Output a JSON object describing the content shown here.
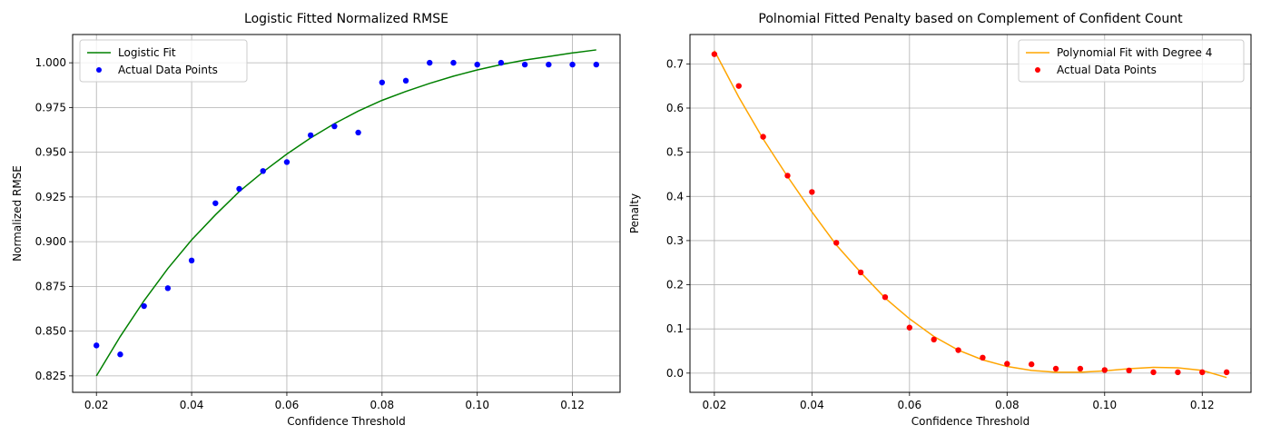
{
  "figure": {
    "background": "#ffffff",
    "grid_color": "#b0b0b0"
  },
  "chart_data": [
    {
      "type": "scatter",
      "title": "Logistic Fitted Normalized RMSE",
      "xlabel": "Confidence Threshold",
      "ylabel": "Normalized RMSE",
      "xlim": [
        0.015,
        0.13
      ],
      "ylim": [
        0.8158,
        1.0158
      ],
      "xticks": [
        0.02,
        0.04,
        0.06,
        0.08,
        0.1,
        0.12
      ],
      "xtick_labels": [
        "0.02",
        "0.04",
        "0.06",
        "0.08",
        "0.10",
        "0.12"
      ],
      "yticks": [
        0.825,
        0.85,
        0.875,
        0.9,
        0.925,
        0.95,
        0.975,
        1.0
      ],
      "ytick_labels": [
        "0.825",
        "0.850",
        "0.875",
        "0.900",
        "0.925",
        "0.950",
        "0.975",
        "1.000"
      ],
      "grid": true,
      "legend_position": "top-left",
      "series": [
        {
          "name": "Logistic Fit",
          "kind": "line",
          "color": "#008000",
          "x": [
            0.02,
            0.025,
            0.03,
            0.035,
            0.04,
            0.045,
            0.05,
            0.055,
            0.06,
            0.065,
            0.07,
            0.075,
            0.08,
            0.085,
            0.09,
            0.095,
            0.1,
            0.105,
            0.11,
            0.115,
            0.12,
            0.125
          ],
          "y": [
            0.825,
            0.847,
            0.867,
            0.885,
            0.901,
            0.915,
            0.928,
            0.939,
            0.949,
            0.958,
            0.966,
            0.973,
            0.979,
            0.984,
            0.9885,
            0.9925,
            0.996,
            0.999,
            1.0015,
            1.0035,
            1.0055,
            1.0072
          ]
        },
        {
          "name": "Actual Data Points",
          "kind": "scatter",
          "color": "#0000ff",
          "x": [
            0.02,
            0.025,
            0.03,
            0.035,
            0.04,
            0.045,
            0.05,
            0.055,
            0.06,
            0.065,
            0.07,
            0.075,
            0.08,
            0.085,
            0.09,
            0.095,
            0.1,
            0.105,
            0.11,
            0.115,
            0.12,
            0.125
          ],
          "y": [
            0.842,
            0.837,
            0.864,
            0.874,
            0.8895,
            0.9215,
            0.9295,
            0.9395,
            0.9445,
            0.9595,
            0.9645,
            0.961,
            0.989,
            0.99,
            1.0,
            1.0,
            0.999,
            1.0,
            0.999,
            0.999,
            0.999,
            0.999
          ]
        }
      ]
    },
    {
      "type": "scatter",
      "title": "Polnomial Fitted Penalty based on Complement of Confident Count",
      "xlabel": "Confidence Threshold",
      "ylabel": "Penalty",
      "xlim": [
        0.015,
        0.13
      ],
      "ylim": [
        -0.0435,
        0.7665
      ],
      "xticks": [
        0.02,
        0.04,
        0.06,
        0.08,
        0.1,
        0.12
      ],
      "xtick_labels": [
        "0.02",
        "0.04",
        "0.06",
        "0.08",
        "0.10",
        "0.12"
      ],
      "yticks": [
        0.0,
        0.1,
        0.2,
        0.3,
        0.4,
        0.5,
        0.6,
        0.7
      ],
      "ytick_labels": [
        "0.0",
        "0.1",
        "0.2",
        "0.3",
        "0.4",
        "0.5",
        "0.6",
        "0.7"
      ],
      "grid": true,
      "legend_position": "top-right",
      "series": [
        {
          "name": "Polynomial Fit with Degree 4",
          "kind": "line",
          "color": "#ffa500",
          "x": [
            0.02,
            0.025,
            0.03,
            0.035,
            0.04,
            0.045,
            0.05,
            0.055,
            0.06,
            0.065,
            0.07,
            0.075,
            0.08,
            0.085,
            0.09,
            0.095,
            0.1,
            0.105,
            0.11,
            0.115,
            0.12,
            0.125
          ],
          "y": [
            0.73,
            0.625,
            0.53,
            0.445,
            0.365,
            0.29,
            0.228,
            0.17,
            0.123,
            0.083,
            0.052,
            0.03,
            0.015,
            0.006,
            0.002,
            0.002,
            0.005,
            0.01,
            0.013,
            0.012,
            0.006,
            -0.01
          ]
        },
        {
          "name": "Actual Data Points",
          "kind": "scatter",
          "color": "#ff0000",
          "x": [
            0.02,
            0.025,
            0.03,
            0.035,
            0.04,
            0.045,
            0.05,
            0.055,
            0.06,
            0.065,
            0.07,
            0.075,
            0.08,
            0.085,
            0.09,
            0.095,
            0.1,
            0.105,
            0.11,
            0.115,
            0.12,
            0.125
          ],
          "y": [
            0.722,
            0.65,
            0.535,
            0.447,
            0.41,
            0.295,
            0.228,
            0.172,
            0.103,
            0.076,
            0.052,
            0.035,
            0.021,
            0.02,
            0.01,
            0.01,
            0.007,
            0.006,
            0.002,
            0.002,
            0.002,
            0.002
          ]
        }
      ]
    }
  ]
}
